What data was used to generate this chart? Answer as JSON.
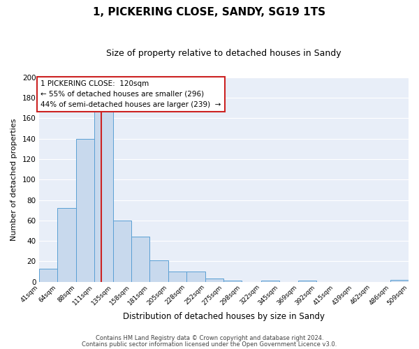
{
  "title": "1, PICKERING CLOSE, SANDY, SG19 1TS",
  "subtitle": "Size of property relative to detached houses in Sandy",
  "xlabel": "Distribution of detached houses by size in Sandy",
  "ylabel": "Number of detached properties",
  "bar_color": "#c8d9ed",
  "bar_edge_color": "#5a9fd4",
  "background_color": "#e8eef8",
  "grid_color": "#ffffff",
  "red_line_x": 120,
  "annotation_line1": "1 PICKERING CLOSE:  120sqm",
  "annotation_line2": "← 55% of detached houses are smaller (296)",
  "annotation_line3": "44% of semi-detached houses are larger (239)  →",
  "bin_edges": [
    41,
    64,
    88,
    111,
    135,
    158,
    181,
    205,
    228,
    252,
    275,
    298,
    322,
    345,
    369,
    392,
    415,
    439,
    462,
    486,
    509
  ],
  "bar_heights": [
    13,
    72,
    140,
    167,
    60,
    44,
    21,
    10,
    10,
    3,
    1,
    0,
    1,
    0,
    1,
    0,
    0,
    0,
    0,
    2
  ],
  "ylim": [
    0,
    200
  ],
  "yticks": [
    0,
    20,
    40,
    60,
    80,
    100,
    120,
    140,
    160,
    180,
    200
  ],
  "footer_line1": "Contains HM Land Registry data © Crown copyright and database right 2024.",
  "footer_line2": "Contains public sector information licensed under the Open Government Licence v3.0."
}
